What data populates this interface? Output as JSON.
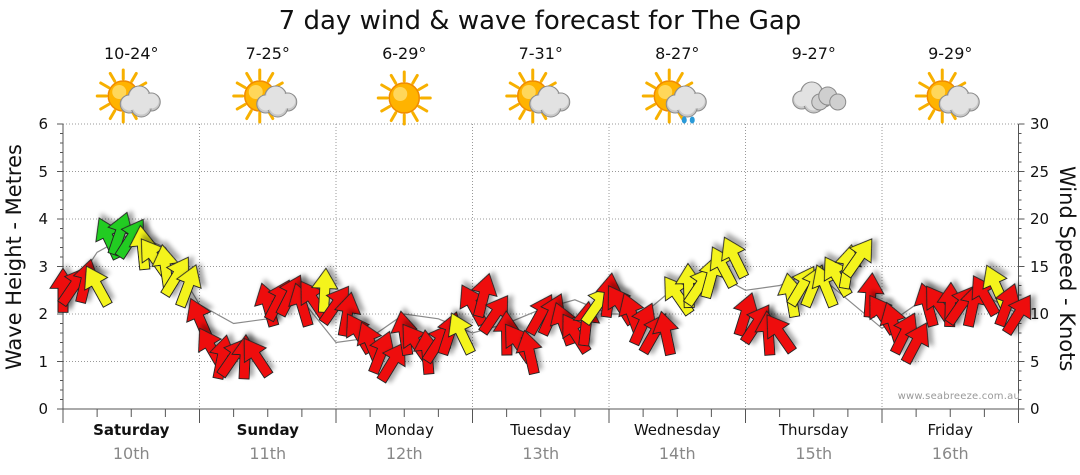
{
  "page": {
    "title": "7 day wind & wave forecast for The Gap",
    "credit": "www.seabreeze.com.au"
  },
  "days": [
    {
      "day": "Saturday",
      "date": "10th",
      "temp": "10-24°",
      "icon": "sun-cloud-icon",
      "bold": true
    },
    {
      "day": "Sunday",
      "date": "11th",
      "temp": "7-25°",
      "icon": "sun-cloud-icon",
      "bold": true
    },
    {
      "day": "Monday",
      "date": "12th",
      "temp": "6-29°",
      "icon": "sun-icon",
      "bold": false
    },
    {
      "day": "Tuesday",
      "date": "13th",
      "temp": "7-31°",
      "icon": "sun-cloud-icon",
      "bold": false
    },
    {
      "day": "Wednesday",
      "date": "14th",
      "temp": "8-27°",
      "icon": "sun-cloud-rain-icon",
      "bold": false
    },
    {
      "day": "Thursday",
      "date": "15th",
      "temp": "9-27°",
      "icon": "cloud-icon",
      "bold": false
    },
    {
      "day": "Friday",
      "date": "16th",
      "temp": "9-29°",
      "icon": "sun-cloud-icon",
      "bold": false
    }
  ],
  "colors": {
    "strong": "#ee1111",
    "moderate": "#f4f41a",
    "light": "#22cc22",
    "outline": "#222222",
    "grid": "#999999"
  },
  "chart_data": {
    "type": "line",
    "title": "7 day wind & wave forecast for The Gap",
    "ylabel_left": "Wave Height - Metres",
    "ylabel_right": "Wind Speed - Knots",
    "ylim_left": [
      0,
      6
    ],
    "ylim_right": [
      0,
      30
    ],
    "yticks_left": [
      "0",
      "1",
      "2",
      "3",
      "4",
      "5",
      "6"
    ],
    "yticks_right": [
      "0",
      "5",
      "10",
      "15",
      "20",
      "25",
      "30"
    ],
    "x_unit": "days from start of Saturday",
    "wave_series": {
      "name": "Wave Height (m)",
      "x": [
        0.0,
        0.25,
        0.5,
        0.75,
        1.0,
        1.25,
        1.5,
        1.75,
        2.0,
        2.25,
        2.5,
        2.75,
        3.0,
        3.25,
        3.5,
        3.75,
        4.0,
        4.25,
        4.5,
        4.75,
        5.0,
        5.25,
        5.5,
        5.75,
        6.0,
        6.25,
        6.5,
        6.75,
        7.0
      ],
      "values": [
        2.2,
        3.3,
        3.7,
        3.4,
        2.2,
        1.8,
        1.9,
        2.3,
        1.4,
        1.5,
        2.0,
        1.9,
        1.6,
        1.8,
        2.1,
        2.3,
        2.0,
        2.0,
        2.6,
        2.9,
        2.5,
        2.6,
        2.9,
        2.3,
        1.7,
        2.2,
        2.3,
        2.4,
        2.0
      ]
    },
    "wind_series": {
      "name": "Wind Speed (knots)",
      "x": [
        0.0,
        0.083,
        0.167,
        0.25,
        0.333,
        0.417,
        0.5,
        0.583,
        0.667,
        0.75,
        0.833,
        0.917,
        1.0,
        1.083,
        1.167,
        1.25,
        1.333,
        1.417,
        1.5,
        1.583,
        1.667,
        1.75,
        1.833,
        1.917,
        2.0,
        2.083,
        2.167,
        2.25,
        2.333,
        2.417,
        2.5,
        2.583,
        2.667,
        2.75,
        2.833,
        2.917,
        3.0,
        3.083,
        3.167,
        3.25,
        3.333,
        3.417,
        3.5,
        3.583,
        3.667,
        3.75,
        3.833,
        3.917,
        4.0,
        4.083,
        4.167,
        4.25,
        4.333,
        4.417,
        4.5,
        4.583,
        4.667,
        4.75,
        4.833,
        4.917,
        5.0,
        5.083,
        5.167,
        5.25,
        5.333,
        5.417,
        5.5,
        5.583,
        5.667,
        5.75,
        5.833,
        5.917,
        6.0,
        6.083,
        6.167,
        6.25,
        6.333,
        6.417,
        6.5,
        6.583,
        6.667,
        6.75,
        6.833,
        6.917,
        7.0
      ],
      "values": [
        12.5,
        13,
        13.5,
        13,
        18,
        18.5,
        18,
        17,
        16,
        15,
        14,
        13,
        9.5,
        6.5,
        5.5,
        5.5,
        5.5,
        5.5,
        11,
        11.5,
        12,
        11,
        11.5,
        12.5,
        11,
        10,
        8,
        7,
        6,
        5,
        8,
        7,
        6,
        7,
        8,
        8,
        11,
        12,
        10,
        8,
        7,
        6,
        10,
        10,
        9,
        8,
        9,
        11,
        12,
        11,
        10,
        9,
        8,
        8,
        12,
        13,
        13,
        14,
        15,
        16,
        10,
        9,
        8,
        8,
        12,
        13,
        13,
        13,
        14,
        15,
        16,
        12,
        10,
        9,
        8,
        7,
        11,
        11,
        11,
        11,
        11,
        12,
        13,
        11,
        10
      ],
      "categories": [
        "strong",
        "strong",
        "strong",
        "moderate",
        "light",
        "light",
        "light",
        "moderate",
        "moderate",
        "moderate",
        "moderate",
        "moderate",
        "strong",
        "strong",
        "strong",
        "strong",
        "strong",
        "strong",
        "strong",
        "strong",
        "strong",
        "strong",
        "strong",
        "moderate",
        "strong",
        "strong",
        "strong",
        "strong",
        "strong",
        "strong",
        "strong",
        "strong",
        "strong",
        "strong",
        "strong",
        "moderate",
        "strong",
        "strong",
        "strong",
        "strong",
        "strong",
        "strong",
        "strong",
        "strong",
        "strong",
        "strong",
        "strong",
        "moderate",
        "strong",
        "strong",
        "strong",
        "strong",
        "strong",
        "strong",
        "moderate",
        "moderate",
        "moderate",
        "moderate",
        "moderate",
        "moderate",
        "strong",
        "strong",
        "strong",
        "strong",
        "moderate",
        "moderate",
        "moderate",
        "moderate",
        "moderate",
        "moderate",
        "moderate",
        "strong",
        "strong",
        "strong",
        "strong",
        "strong",
        "strong",
        "strong",
        "strong",
        "strong",
        "strong",
        "strong",
        "moderate",
        "strong",
        "strong"
      ]
    }
  }
}
